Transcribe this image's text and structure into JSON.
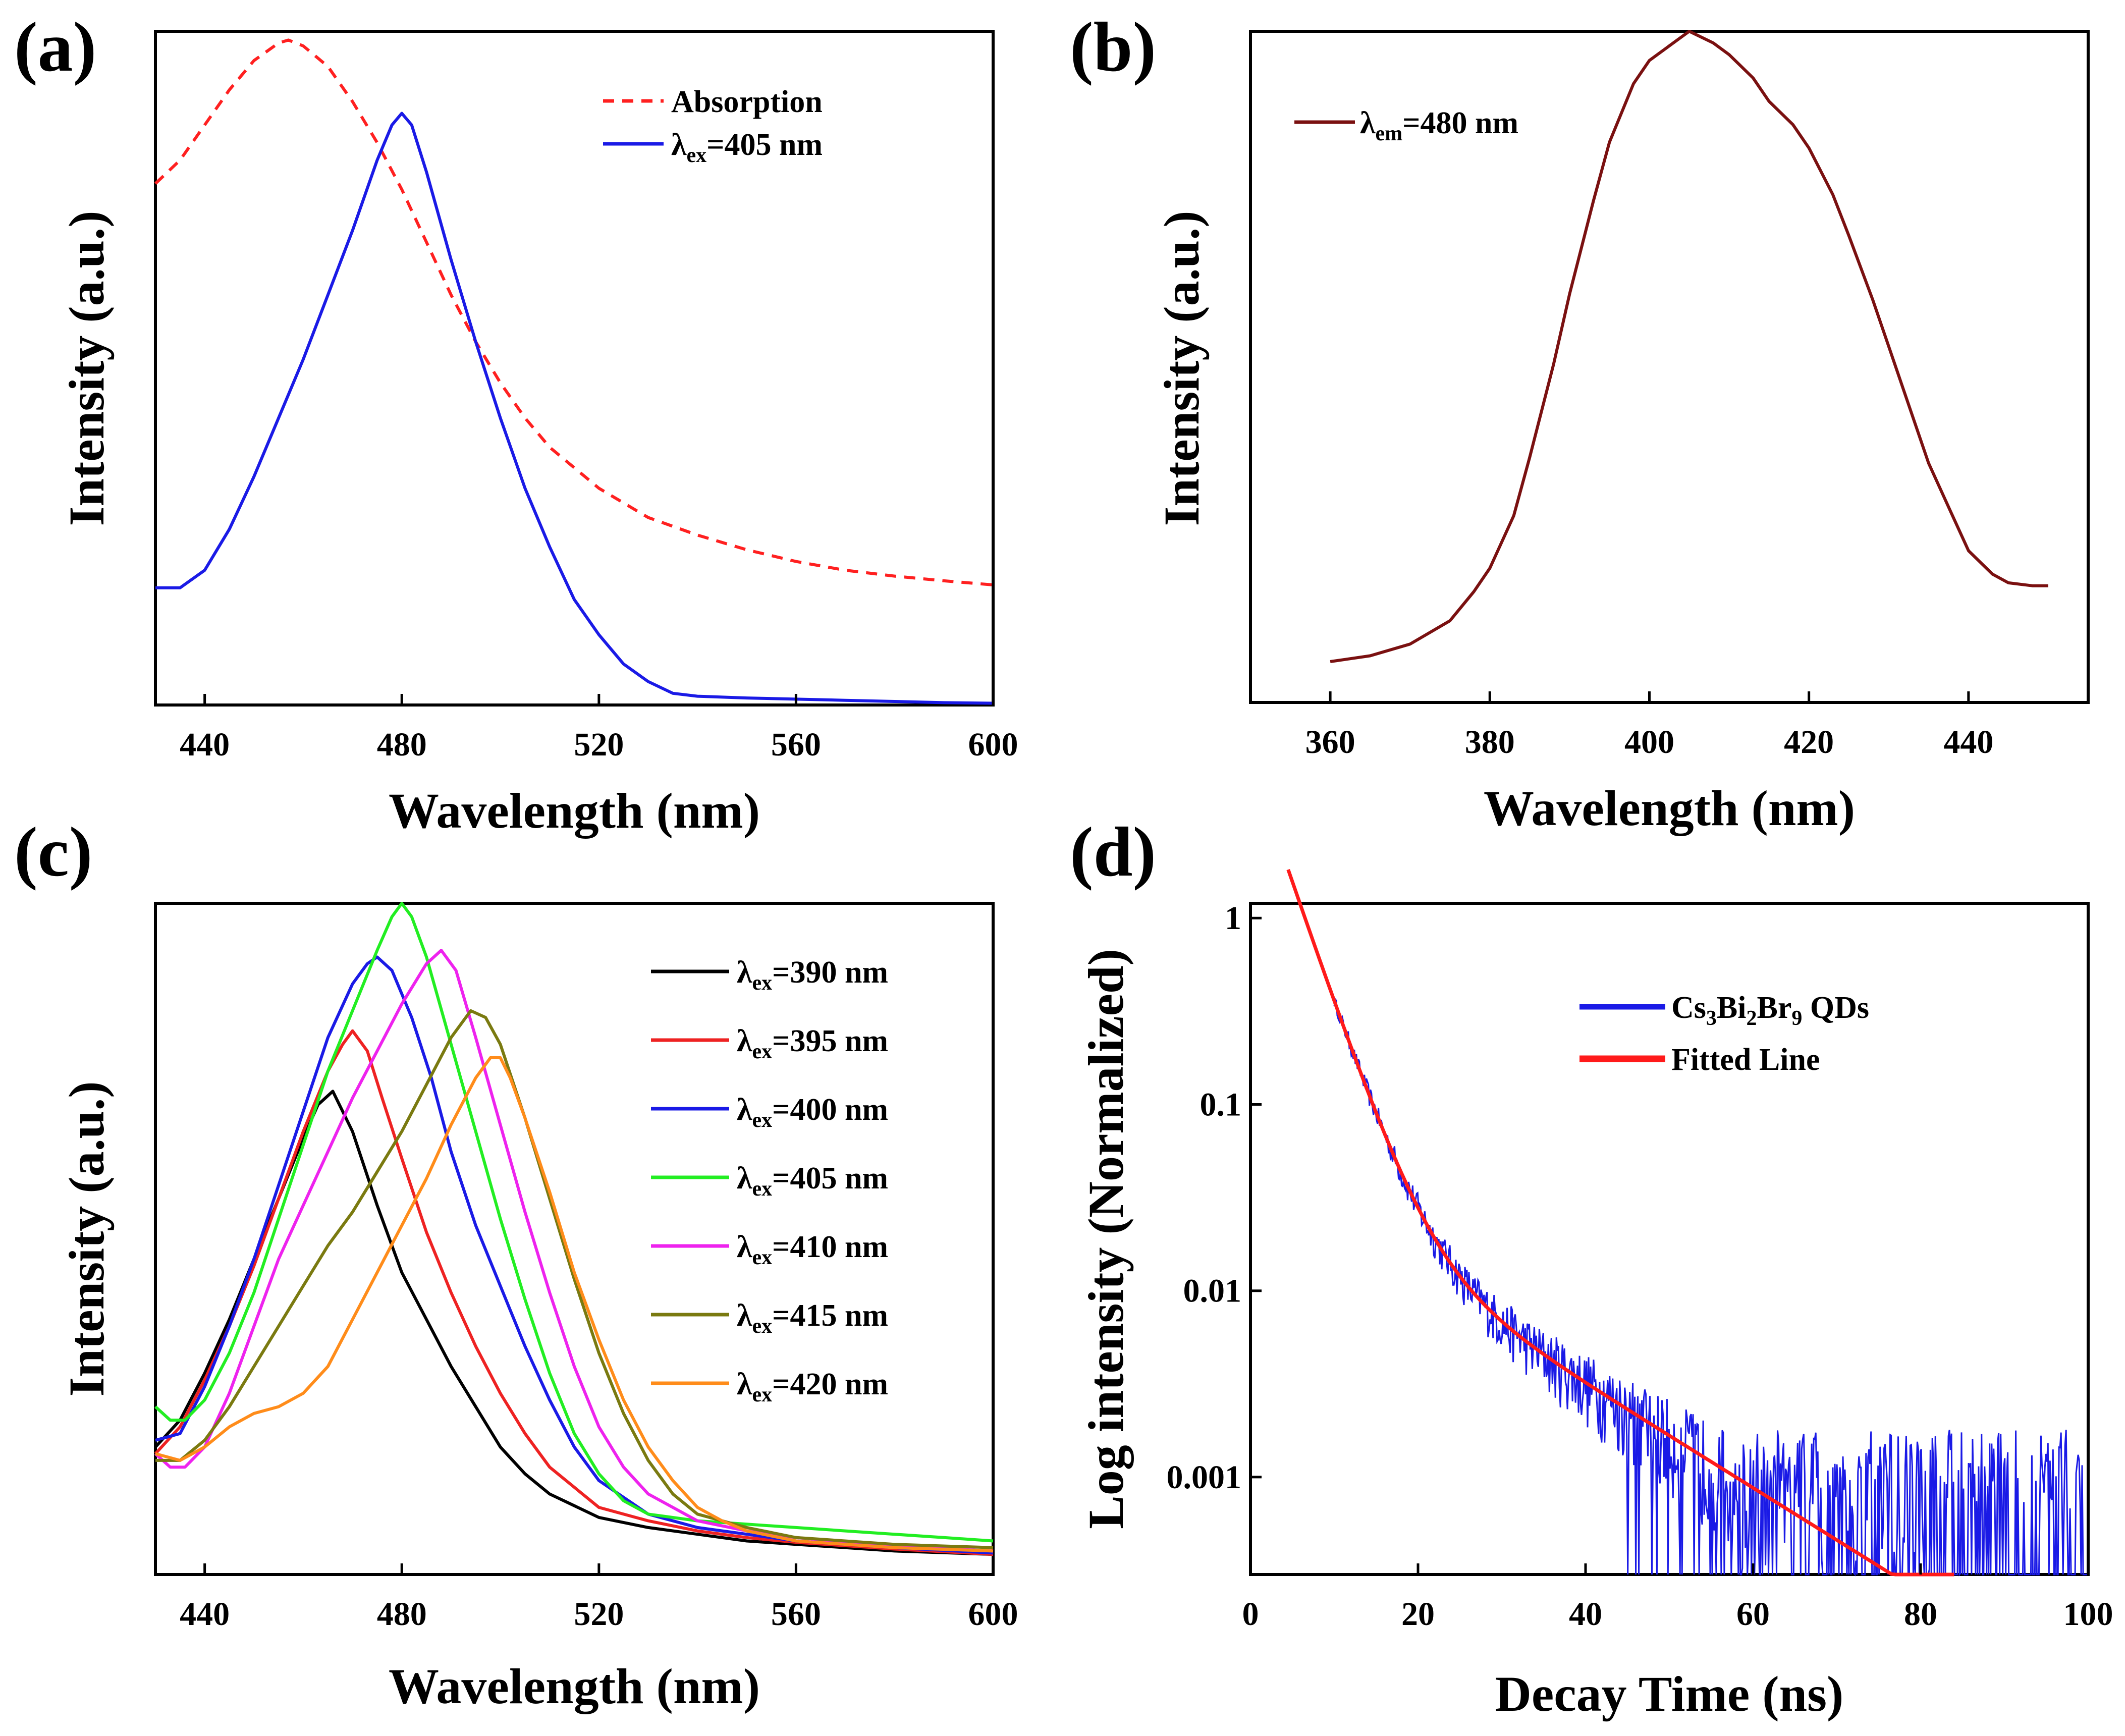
{
  "chart_data": [
    {
      "panel": "(a)",
      "type": "line",
      "xlabel": "Wavelength (nm)",
      "ylabel": "Intensity (a.u.)",
      "xlim": [
        430,
        600
      ],
      "ylim": [
        0,
        1.15
      ],
      "xticks": [
        440,
        480,
        520,
        560,
        600
      ],
      "legend_position": "top-right",
      "series": [
        {
          "name": "Absorption",
          "label_main": "Absorption",
          "label_sub": "",
          "label_tail": "",
          "color": "#ff2020",
          "dashed": true,
          "x": [
            430,
            435,
            440,
            445,
            450,
            455,
            457,
            460,
            465,
            470,
            475,
            480,
            485,
            490,
            495,
            500,
            505,
            510,
            520,
            530,
            540,
            550,
            560,
            570,
            580,
            590,
            600
          ],
          "y": [
            0.89,
            0.93,
            0.99,
            1.05,
            1.1,
            1.13,
            1.135,
            1.125,
            1.09,
            1.03,
            0.96,
            0.88,
            0.79,
            0.7,
            0.62,
            0.55,
            0.49,
            0.44,
            0.37,
            0.32,
            0.29,
            0.265,
            0.245,
            0.23,
            0.22,
            0.212,
            0.205
          ]
        },
        {
          "name": "λex=405 nm",
          "label_main": "λ",
          "label_sub": "ex",
          "label_tail": "=405 nm",
          "color": "#1a1ae6",
          "dashed": false,
          "x": [
            430,
            435,
            440,
            445,
            450,
            455,
            460,
            465,
            470,
            475,
            478,
            480,
            482,
            485,
            490,
            495,
            500,
            505,
            510,
            515,
            520,
            525,
            530,
            535,
            540,
            550,
            560,
            570,
            580,
            590,
            600
          ],
          "y": [
            0.2,
            0.2,
            0.23,
            0.3,
            0.39,
            0.49,
            0.59,
            0.7,
            0.81,
            0.93,
            0.99,
            1.01,
            0.99,
            0.91,
            0.76,
            0.62,
            0.49,
            0.37,
            0.27,
            0.18,
            0.12,
            0.07,
            0.04,
            0.02,
            0.015,
            0.012,
            0.01,
            0.008,
            0.006,
            0.004,
            0.003
          ]
        }
      ]
    },
    {
      "panel": "(b)",
      "type": "line",
      "xlabel": "Wavelength (nm)",
      "ylabel": "Intensity (a.u.)",
      "xlim": [
        350,
        455
      ],
      "ylim": [
        0,
        1.15
      ],
      "xticks": [
        360,
        380,
        400,
        420,
        440
      ],
      "legend_position": "top-left",
      "series": [
        {
          "name": "λem=480 nm",
          "label_main": "λ",
          "label_sub": "em",
          "label_tail": "=480 nm",
          "color": "#7a1010",
          "dashed": false,
          "x": [
            360,
            365,
            370,
            375,
            378,
            380,
            383,
            385,
            388,
            390,
            393,
            395,
            398,
            400,
            403,
            405,
            408,
            410,
            413,
            415,
            418,
            420,
            423,
            425,
            428,
            430,
            433,
            435,
            438,
            440,
            443,
            445,
            448,
            450
          ],
          "y": [
            0.07,
            0.08,
            0.1,
            0.14,
            0.19,
            0.23,
            0.32,
            0.42,
            0.58,
            0.7,
            0.86,
            0.96,
            1.06,
            1.1,
            1.13,
            1.15,
            1.13,
            1.11,
            1.07,
            1.03,
            0.99,
            0.95,
            0.87,
            0.8,
            0.69,
            0.61,
            0.49,
            0.41,
            0.32,
            0.26,
            0.22,
            0.205,
            0.2,
            0.2
          ]
        }
      ]
    },
    {
      "panel": "(c)",
      "type": "line",
      "xlabel": "Wavelength (nm)",
      "ylabel": "Intensity (a.u.)",
      "xlim": [
        430,
        600
      ],
      "ylim": [
        0,
        1.0
      ],
      "xticks": [
        440,
        480,
        520,
        560,
        600
      ],
      "legend_position": "top-right",
      "series": [
        {
          "name": "λex=390 nm",
          "label_main": "λ",
          "label_sub": "ex",
          "label_tail": "=390 nm",
          "color": "#000000",
          "dashed": false,
          "x": [
            430,
            435,
            440,
            445,
            450,
            455,
            460,
            463,
            466,
            470,
            475,
            480,
            485,
            490,
            495,
            500,
            505,
            510,
            520,
            530,
            540,
            550,
            560,
            580,
            600
          ],
          "y": [
            0.19,
            0.23,
            0.3,
            0.38,
            0.47,
            0.56,
            0.65,
            0.7,
            0.72,
            0.66,
            0.55,
            0.45,
            0.38,
            0.31,
            0.25,
            0.19,
            0.15,
            0.12,
            0.085,
            0.07,
            0.06,
            0.05,
            0.045,
            0.035,
            0.03
          ]
        },
        {
          "name": "λex=395 nm",
          "label_main": "λ",
          "label_sub": "ex",
          "label_tail": "=395 nm",
          "color": "#ee2222",
          "dashed": false,
          "x": [
            430,
            435,
            440,
            445,
            450,
            455,
            460,
            465,
            468,
            470,
            473,
            476,
            480,
            485,
            490,
            495,
            500,
            505,
            510,
            515,
            520,
            530,
            540,
            550,
            560,
            580,
            600
          ],
          "y": [
            0.18,
            0.22,
            0.29,
            0.37,
            0.46,
            0.56,
            0.66,
            0.75,
            0.79,
            0.81,
            0.78,
            0.71,
            0.62,
            0.51,
            0.42,
            0.34,
            0.27,
            0.21,
            0.16,
            0.13,
            0.1,
            0.08,
            0.065,
            0.055,
            0.048,
            0.038,
            0.03
          ]
        },
        {
          "name": "λex=400 nm",
          "label_main": "λ",
          "label_sub": "ex",
          "label_tail": "=400 nm",
          "color": "#1a1ae6",
          "dashed": false,
          "x": [
            430,
            435,
            440,
            445,
            450,
            455,
            460,
            465,
            470,
            473,
            475,
            478,
            482,
            486,
            490,
            495,
            500,
            505,
            510,
            515,
            520,
            530,
            540,
            550,
            560,
            580,
            600
          ],
          "y": [
            0.2,
            0.21,
            0.28,
            0.37,
            0.47,
            0.58,
            0.69,
            0.8,
            0.88,
            0.91,
            0.92,
            0.9,
            0.83,
            0.74,
            0.63,
            0.52,
            0.43,
            0.34,
            0.26,
            0.19,
            0.14,
            0.09,
            0.07,
            0.06,
            0.05,
            0.04,
            0.032
          ]
        },
        {
          "name": "λex=405 nm",
          "label_main": "λ",
          "label_sub": "ex",
          "label_tail": "=405 nm",
          "color": "#22ee22",
          "dashed": false,
          "x": [
            430,
            433,
            436,
            440,
            445,
            450,
            455,
            460,
            465,
            470,
            475,
            478,
            480,
            482,
            485,
            490,
            495,
            500,
            505,
            510,
            515,
            520,
            525,
            530,
            540,
            550,
            560,
            570,
            580,
            590,
            600
          ],
          "y": [
            0.25,
            0.23,
            0.23,
            0.26,
            0.33,
            0.42,
            0.53,
            0.64,
            0.75,
            0.84,
            0.93,
            0.98,
            1.0,
            0.98,
            0.92,
            0.79,
            0.66,
            0.53,
            0.41,
            0.3,
            0.21,
            0.15,
            0.11,
            0.09,
            0.08,
            0.075,
            0.07,
            0.065,
            0.06,
            0.055,
            0.05
          ]
        },
        {
          "name": "λex=410 nm",
          "label_main": "λ",
          "label_sub": "ex",
          "label_tail": "=410 nm",
          "color": "#ee22ee",
          "dashed": false,
          "x": [
            430,
            433,
            436,
            440,
            445,
            450,
            455,
            460,
            465,
            470,
            475,
            480,
            485,
            488,
            491,
            495,
            500,
            505,
            510,
            515,
            520,
            525,
            530,
            540,
            550,
            560,
            580,
            600
          ],
          "y": [
            0.18,
            0.16,
            0.16,
            0.19,
            0.27,
            0.37,
            0.47,
            0.55,
            0.63,
            0.71,
            0.78,
            0.85,
            0.91,
            0.93,
            0.9,
            0.8,
            0.67,
            0.54,
            0.42,
            0.31,
            0.22,
            0.16,
            0.12,
            0.08,
            0.065,
            0.055,
            0.042,
            0.035
          ]
        },
        {
          "name": "λex=415 nm",
          "label_main": "λ",
          "label_sub": "ex",
          "label_tail": "=415 nm",
          "color": "#7a7a10",
          "dashed": false,
          "x": [
            430,
            435,
            440,
            445,
            450,
            455,
            460,
            465,
            470,
            475,
            480,
            485,
            490,
            494,
            497,
            500,
            505,
            510,
            515,
            520,
            525,
            530,
            535,
            540,
            550,
            560,
            580,
            600
          ],
          "y": [
            0.17,
            0.17,
            0.2,
            0.25,
            0.31,
            0.37,
            0.43,
            0.49,
            0.54,
            0.6,
            0.66,
            0.73,
            0.8,
            0.84,
            0.83,
            0.79,
            0.68,
            0.56,
            0.44,
            0.33,
            0.24,
            0.17,
            0.12,
            0.09,
            0.07,
            0.055,
            0.045,
            0.04
          ]
        },
        {
          "name": "λex=420 nm",
          "label_main": "λ",
          "label_sub": "ex",
          "label_tail": "=420 nm",
          "color": "#ff8c1a",
          "dashed": false,
          "x": [
            430,
            435,
            440,
            445,
            450,
            455,
            460,
            465,
            470,
            475,
            480,
            485,
            490,
            495,
            498,
            500,
            502,
            505,
            510,
            515,
            520,
            525,
            530,
            535,
            540,
            545,
            550,
            560,
            580,
            600
          ],
          "y": [
            0.18,
            0.17,
            0.19,
            0.22,
            0.24,
            0.25,
            0.27,
            0.31,
            0.38,
            0.45,
            0.52,
            0.59,
            0.67,
            0.74,
            0.77,
            0.77,
            0.74,
            0.68,
            0.57,
            0.45,
            0.35,
            0.26,
            0.19,
            0.14,
            0.1,
            0.08,
            0.065,
            0.05,
            0.04,
            0.035
          ]
        }
      ]
    },
    {
      "panel": "(d)",
      "type": "line",
      "yscale": "log",
      "xlabel": "Decay Time (ns)",
      "ylabel": "Log intensity (Normalized)",
      "xlim": [
        0,
        100
      ],
      "ylim": [
        0.0003,
        1.2
      ],
      "xticks": [
        0,
        20,
        40,
        60,
        80,
        100
      ],
      "yticks": [
        0.001,
        0.01,
        0.1,
        1
      ],
      "ytick_labels": [
        "0.001",
        "0.01",
        "0.1",
        "1"
      ],
      "legend_position": "top-right",
      "series": [
        {
          "name": "Cs3Bi2Br9 QDs",
          "label_main": "Cs",
          "label_parts": [
            "Cs",
            "3",
            "Bi",
            "2",
            "Br",
            "9",
            " QDs"
          ],
          "color": "#1a1ae6",
          "dashed": false,
          "noisy": true,
          "x_start": 10,
          "x_end": 100,
          "decay": {
            "a1": 7.0,
            "t1": 3.3,
            "a2": 0.042,
            "t2": 15.5,
            "floor_from": 44,
            "floor_level": 0.0003
          }
        },
        {
          "name": "Fitted Line",
          "label_main": "Fitted Line",
          "color": "#ff1a1a",
          "dashed": false,
          "x_start": 4.5,
          "x_end": 84,
          "decay": {
            "a1": 7.0,
            "t1": 3.3,
            "a2": 0.042,
            "t2": 15.5
          }
        }
      ]
    }
  ]
}
